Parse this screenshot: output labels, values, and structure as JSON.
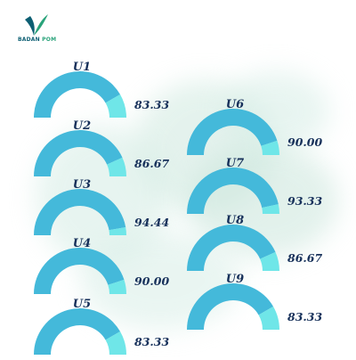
{
  "logo": {
    "word1": "BADAN",
    "word2": "POM"
  },
  "colors": {
    "filled": "#44b9da",
    "remainder": "#6fe6e8",
    "text": "#16305a"
  },
  "chart_data": {
    "type": "gauge",
    "max": 100,
    "items": [
      {
        "label": "U1",
        "value": 83.33,
        "display": "83.33"
      },
      {
        "label": "U2",
        "value": 86.67,
        "display": "86.67"
      },
      {
        "label": "U3",
        "value": 94.44,
        "display": "94.44"
      },
      {
        "label": "U4",
        "value": 90.0,
        "display": "90.00"
      },
      {
        "label": "U5",
        "value": 83.33,
        "display": "83.33"
      },
      {
        "label": "U6",
        "value": 90.0,
        "display": "90.00"
      },
      {
        "label": "U7",
        "value": 93.33,
        "display": "93.33"
      },
      {
        "label": "U8",
        "value": 86.67,
        "display": "86.67"
      },
      {
        "label": "U9",
        "value": 83.33,
        "display": "83.33"
      }
    ]
  }
}
